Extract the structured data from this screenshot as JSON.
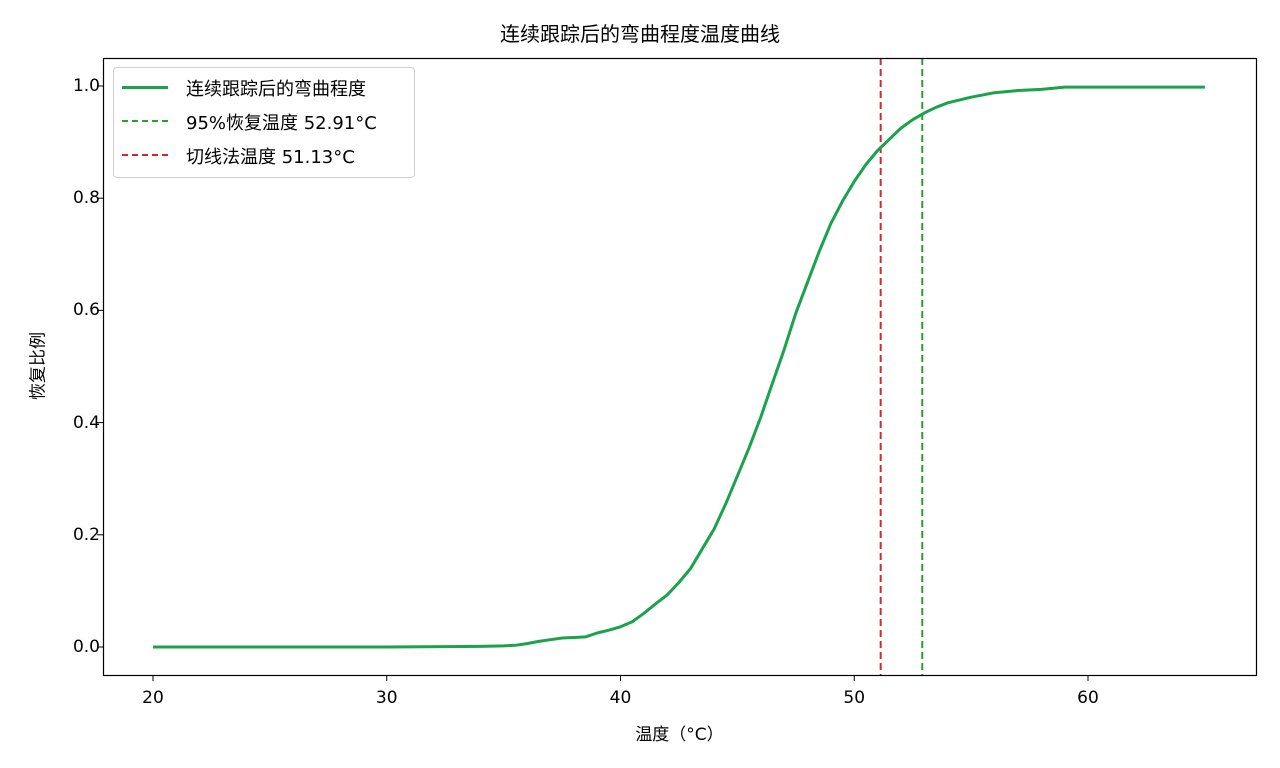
{
  "chart_data": {
    "type": "line",
    "title": "连续跟踪后的弯曲程度温度曲线",
    "xlabel": "温度（°C）",
    "ylabel": "恢复比例",
    "xlim": [
      18,
      67.5
    ],
    "ylim": [
      -0.05,
      1.05
    ],
    "grid": false,
    "legend_position": "upper left",
    "x_ticks": [
      "20",
      "30",
      "40",
      "50",
      "60"
    ],
    "y_ticks": [
      "0.0",
      "0.2",
      "0.4",
      "0.6",
      "0.8",
      "1.0"
    ],
    "series": [
      {
        "name": "连续跟踪后的弯曲程度",
        "color": "#1aa34a",
        "style": "solid",
        "x": [
          20,
          25,
          30,
          34,
          35,
          35.5,
          36,
          36.5,
          37,
          37.5,
          38,
          38.5,
          39,
          39.5,
          40,
          40.5,
          41,
          41.5,
          42,
          42.5,
          43,
          43.5,
          44,
          44.5,
          45,
          45.5,
          46,
          46.5,
          47,
          47.5,
          48,
          48.5,
          49,
          49.5,
          50,
          50.5,
          51,
          51.5,
          52,
          52.5,
          53,
          53.5,
          54,
          55,
          56,
          57,
          58,
          59,
          60,
          62,
          65
        ],
        "y": [
          0,
          0,
          0,
          0.001,
          0.002,
          0.003,
          0.006,
          0.01,
          0.013,
          0.016,
          0.017,
          0.018,
          0.025,
          0.03,
          0.036,
          0.045,
          0.06,
          0.077,
          0.093,
          0.115,
          0.14,
          0.175,
          0.21,
          0.255,
          0.305,
          0.355,
          0.41,
          0.47,
          0.53,
          0.595,
          0.65,
          0.705,
          0.755,
          0.795,
          0.83,
          0.86,
          0.885,
          0.905,
          0.925,
          0.94,
          0.952,
          0.962,
          0.97,
          0.98,
          0.988,
          0.992,
          0.994,
          0.998,
          0.998,
          0.998,
          0.998
        ]
      },
      {
        "name": "95%恢复温度 52.91°C",
        "color": "#2ca02c",
        "style": "dashed",
        "vline_x": 52.91
      },
      {
        "name": "切线法温度 51.13°C",
        "color": "#d62728",
        "style": "dashed",
        "vline_x": 51.13
      }
    ]
  },
  "legend": {
    "items": [
      {
        "label": "连续跟踪后的弯曲程度",
        "color": "#1aa34a",
        "style": "solid"
      },
      {
        "label": "95%恢复温度 52.91°C",
        "color": "#2ca02c",
        "style": "dashed"
      },
      {
        "label": "切线法温度 51.13°C",
        "color": "#d62728",
        "style": "dashed"
      }
    ]
  },
  "colors": {
    "curve": "#1aa34a",
    "vline_95": "#2ca02c",
    "vline_tangent": "#d62728",
    "axes": "#000000"
  }
}
